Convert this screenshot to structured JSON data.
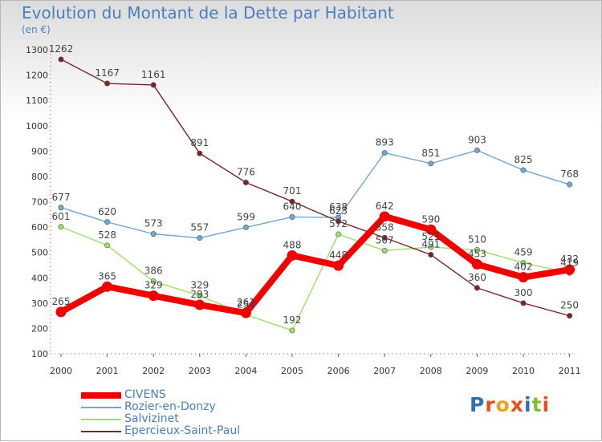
{
  "title": "Evolution du Montant de la Dette par Habitant",
  "subtitle": "(en €)",
  "logo": {
    "text": "Proxiti",
    "letters": [
      {
        "char": "P",
        "color": "#2f6eb5"
      },
      {
        "char": "r",
        "color": "#e84c1f"
      },
      {
        "char": "o",
        "color": "#f0a01c"
      },
      {
        "char": "x",
        "color": "#e84c1f"
      },
      {
        "char": "i",
        "color": "#2f6eb5"
      },
      {
        "char": "t",
        "color": "#7fbf2a"
      },
      {
        "char": "i",
        "color": "#e84c1f"
      }
    ]
  },
  "chart_data": {
    "type": "line",
    "title": "Evolution du Montant de la Dette par Habitant",
    "subtitle": "(en €)",
    "xlabel": "",
    "ylabel": "",
    "x": [
      "2000",
      "2001",
      "2002",
      "2003",
      "2004",
      "2005",
      "2006",
      "2007",
      "2008",
      "2009",
      "2010",
      "2011"
    ],
    "ylim": [
      100,
      1300
    ],
    "yticks": [
      100,
      200,
      300,
      400,
      500,
      600,
      700,
      800,
      900,
      1000,
      1100,
      1200,
      1300
    ],
    "grid": false,
    "legend_position": "bottom-left",
    "series": [
      {
        "name": "CIVENS",
        "color": "#f20000",
        "values": [
          265,
          365,
          329,
          293,
          261,
          488,
          448,
          642,
          590,
          453,
          402,
          432
        ]
      },
      {
        "name": "Rozier-en-Donzy",
        "color": "#6fa7d8",
        "values": [
          677,
          620,
          573,
          557,
          599,
          640,
          638,
          893,
          851,
          903,
          825,
          768
        ]
      },
      {
        "name": "Salvizinet",
        "color": "#99e266",
        "values": [
          601,
          528,
          386,
          329,
          254,
          192,
          572,
          507,
          521,
          510,
          459,
          419
        ]
      },
      {
        "name": "Epercieux-Saint-Paul",
        "color": "#7a2424",
        "values": [
          1262,
          1167,
          1161,
          891,
          776,
          701,
          623,
          558,
          491,
          360,
          300,
          250
        ]
      }
    ]
  }
}
